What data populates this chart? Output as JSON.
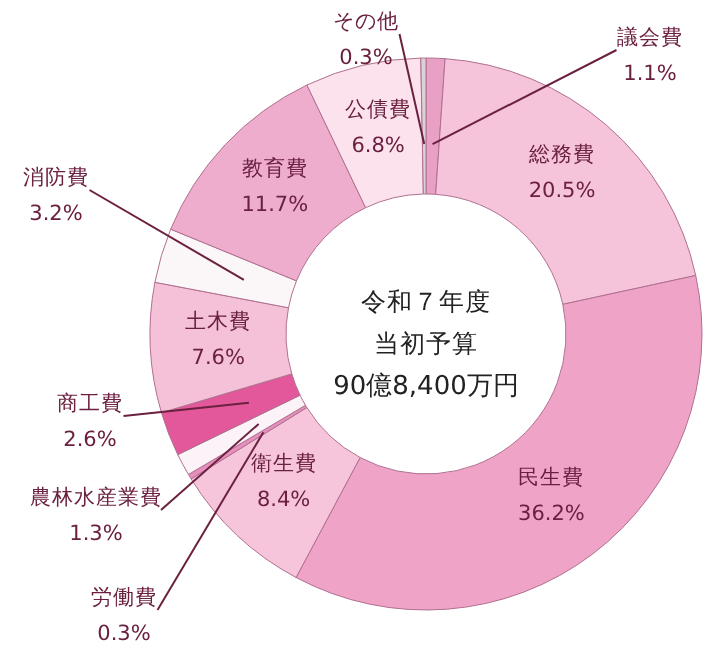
{
  "chart_data": {
    "type": "donut",
    "categories": [
      "議会費",
      "総務費",
      "民生費",
      "衛生費",
      "労働費",
      "農林水産業費",
      "商工費",
      "土木費",
      "消防費",
      "教育費",
      "公債費",
      "その他"
    ],
    "values": [
      1.1,
      20.5,
      36.2,
      8.4,
      0.3,
      1.3,
      2.6,
      7.6,
      3.2,
      11.7,
      6.8,
      0.3
    ],
    "value_labels": [
      "1.1%",
      "20.5%",
      "36.2%",
      "8.4%",
      "0.3%",
      "1.3%",
      "2.6%",
      "7.6%",
      "3.2%",
      "11.7%",
      "6.8%",
      "0.3%"
    ],
    "colors": [
      "#e8a0c4",
      "#f5c3da",
      "#efa3c7",
      "#f6c5db",
      "#e68fbd",
      "#fbf3f7",
      "#e2589a",
      "#f5c1d8",
      "#fbf6f8",
      "#eeadcd",
      "#fbe2ed",
      "#d9d2d6"
    ],
    "annotations": [
      "令和７年度",
      "当初予算",
      "90億8,400万円"
    ]
  }
}
